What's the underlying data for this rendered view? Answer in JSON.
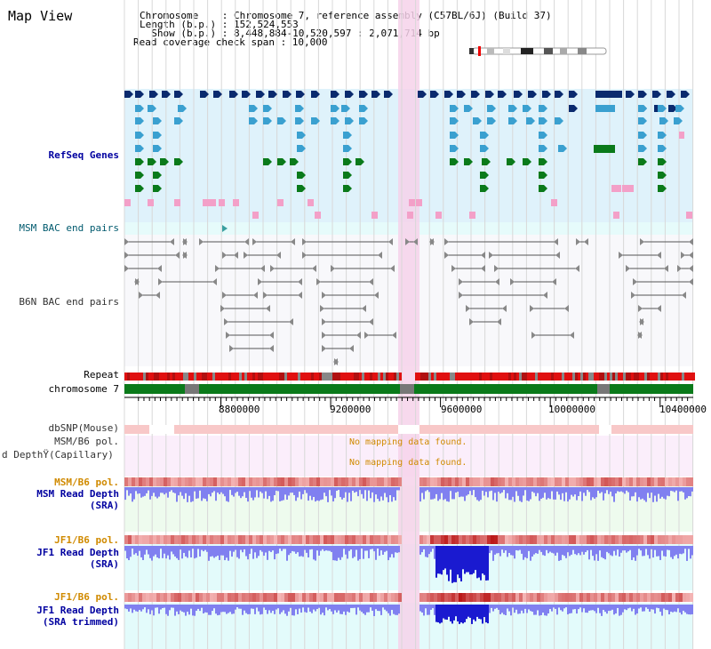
{
  "view": {
    "title": "Map View",
    "info_lines": [
      "Chromosome    : Chromosome 7, reference assembly (C57BL/6J) (Build 37)",
      "Length (b.p.) : 152,524,553",
      "  Show (b.p.) : 8,448,884-10,520,597 : 2,071,714 bp",
      "Read coverage check span : 10,000"
    ]
  },
  "tracks": {
    "refseq": "RefSeq Genes",
    "msm_bac": "MSM BAC end pairs",
    "b6n_bac": "B6N BAC end pairs",
    "repeat": "Repeat",
    "chromosome": "chromosome 7",
    "dbsnp": "dbSNP(Mouse)",
    "msm_pol1": "MSM/B6 pol.",
    "depth_cap": "d DepthŸ(Capillary)",
    "msm_pol2": "MSM/B6 pol.",
    "msm_depth": "MSM Read Depth",
    "msm_depth_sub": "(SRA)",
    "jf1_pol1": "JF1/B6 pol.",
    "jf1_depth": "JF1 Read Depth",
    "jf1_depth_sub": "(SRA)",
    "jf1_pol2": "JF1/B6 pol.",
    "jf1_depth2": "JF1 Read Depth",
    "jf1_depth2_sub": "(SRA trimmed)"
  },
  "messages": {
    "no_mapping_1": "No mapping data found.",
    "no_mapping_2": "No mapping data found."
  },
  "axis": {
    "ticks": [
      "8800000",
      "9200000",
      "9600000",
      "10000000",
      "10400000"
    ],
    "tick_values": [
      8800000,
      9200000,
      9600000,
      10000000,
      10400000
    ],
    "range": [
      8448884,
      10520597
    ]
  },
  "colors": {
    "gene_navy": "#0a2a6e",
    "gene_blue": "#3aa0d0",
    "gene_green": "#0a7a1a",
    "gene_pink": "#f3a0c8",
    "highlight": "#f6d2ea",
    "refseq_bg": "#dff2fb",
    "msm_bg": "#e6fbfb",
    "b6n_bg": "#f8f8fb",
    "pol_bg": "#fbeefb",
    "depth_green_bg": "#eefbee",
    "depth_cyan_bg": "#e3fbfb",
    "chrom_green": "#0a7a1a",
    "repeat_red": "#e01010",
    "depth_bar": "#8080f0",
    "depth_dark": "#1a1ad0"
  }
}
